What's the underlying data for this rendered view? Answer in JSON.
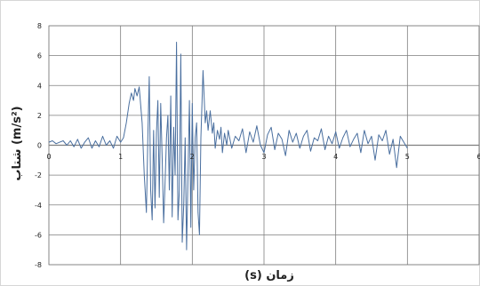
{
  "chart_data": {
    "type": "line",
    "title": "",
    "xlabel": "(s) زمان",
    "ylabel": "شتاب (m/s²)",
    "xlim": [
      0,
      6
    ],
    "ylim": [
      -8,
      8
    ],
    "x_ticks": [
      0,
      1,
      2,
      3,
      4,
      5,
      6
    ],
    "y_ticks": [
      -8,
      -6,
      -4,
      -2,
      0,
      2,
      4,
      6,
      8
    ],
    "grid": true,
    "legend": "none",
    "colors": {
      "line": "#4a6f9f",
      "grid": "#7f7f7f",
      "axis": "#7f7f7f"
    },
    "series": [
      {
        "x": [
          0.0,
          0.05,
          0.1,
          0.15,
          0.2,
          0.25,
          0.3,
          0.35,
          0.4,
          0.45,
          0.5,
          0.55,
          0.6,
          0.65,
          0.7,
          0.75,
          0.8,
          0.85,
          0.9,
          0.95,
          1.0,
          1.04,
          1.08,
          1.12,
          1.15,
          1.18,
          1.2,
          1.23,
          1.26,
          1.3,
          1.33,
          1.36,
          1.38,
          1.4,
          1.42,
          1.44,
          1.46,
          1.48,
          1.5,
          1.52,
          1.54,
          1.56,
          1.58,
          1.6,
          1.62,
          1.64,
          1.66,
          1.68,
          1.7,
          1.72,
          1.74,
          1.76,
          1.78,
          1.8,
          1.82,
          1.84,
          1.86,
          1.88,
          1.9,
          1.92,
          1.94,
          1.96,
          1.98,
          2.0,
          2.02,
          2.04,
          2.06,
          2.08,
          2.1,
          2.12,
          2.15,
          2.18,
          2.2,
          2.22,
          2.25,
          2.28,
          2.3,
          2.32,
          2.35,
          2.38,
          2.4,
          2.42,
          2.45,
          2.48,
          2.5,
          2.55,
          2.6,
          2.65,
          2.7,
          2.75,
          2.8,
          2.85,
          2.9,
          2.95,
          3.0,
          3.05,
          3.1,
          3.15,
          3.2,
          3.25,
          3.3,
          3.35,
          3.4,
          3.45,
          3.5,
          3.55,
          3.6,
          3.65,
          3.7,
          3.75,
          3.8,
          3.85,
          3.9,
          3.95,
          4.0,
          4.05,
          4.1,
          4.15,
          4.2,
          4.25,
          4.3,
          4.35,
          4.4,
          4.45,
          4.5,
          4.55,
          4.6,
          4.65,
          4.7,
          4.75,
          4.8,
          4.85,
          4.9,
          4.95,
          5.0
        ],
        "y": [
          0.2,
          0.3,
          0.1,
          0.2,
          0.3,
          0.0,
          0.3,
          -0.1,
          0.4,
          -0.2,
          0.2,
          0.5,
          -0.2,
          0.3,
          -0.1,
          0.6,
          0.0,
          0.3,
          -0.2,
          0.6,
          0.2,
          0.5,
          1.5,
          2.8,
          3.5,
          3.0,
          3.8,
          3.3,
          3.9,
          1.5,
          -2.0,
          -4.5,
          0.5,
          4.6,
          -3.0,
          -5.0,
          1.0,
          -4.2,
          0.8,
          3.0,
          -3.5,
          2.8,
          -1.0,
          -5.2,
          -2.5,
          0.5,
          2.0,
          -3.0,
          3.3,
          -4.8,
          1.2,
          -2.0,
          6.9,
          -5.0,
          -3.0,
          6.1,
          -6.5,
          -4.0,
          0.5,
          -7.0,
          -2.0,
          3.0,
          -5.5,
          2.8,
          -3.0,
          0.5,
          1.5,
          -4.5,
          -6.0,
          0.5,
          5.0,
          1.5,
          2.3,
          1.0,
          2.3,
          0.8,
          1.5,
          -0.2,
          1.0,
          0.4,
          1.2,
          -0.5,
          0.8,
          0.0,
          1.0,
          -0.2,
          0.6,
          0.3,
          1.1,
          -0.5,
          0.9,
          0.2,
          1.3,
          0.0,
          -0.5,
          0.7,
          1.2,
          -0.3,
          0.8,
          0.4,
          -0.7,
          1.0,
          0.2,
          0.8,
          -0.2,
          0.6,
          1.0,
          -0.4,
          0.5,
          0.3,
          1.1,
          -0.3,
          0.6,
          0.1,
          0.9,
          -0.2,
          0.5,
          1.0,
          -0.1,
          0.4,
          0.8,
          -0.5,
          1.0,
          0.1,
          0.6,
          -1.0,
          0.7,
          0.3,
          1.0,
          -0.6,
          0.4,
          -1.5,
          0.6,
          0.2,
          -0.2
        ]
      }
    ]
  }
}
